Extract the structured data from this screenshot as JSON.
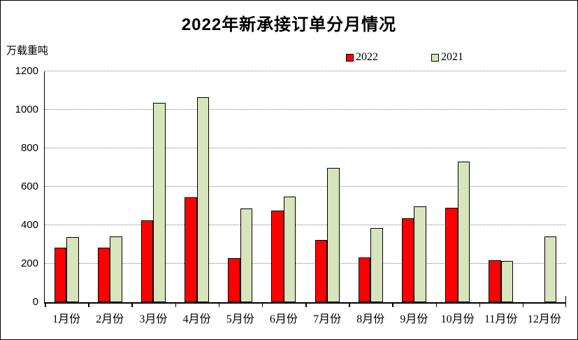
{
  "chart_data": {
    "type": "bar",
    "title": "2022年新承接订单分月情况",
    "unit_label": "万载重吨",
    "categories": [
      "1月份",
      "2月份",
      "3月份",
      "4月份",
      "5月份",
      "6月份",
      "7月份",
      "8月份",
      "9月份",
      "10月份",
      "11月份",
      "12月份"
    ],
    "series": [
      {
        "name": "2022",
        "color": "#ff0000",
        "values": [
          283,
          283,
          425,
          545,
          230,
          475,
          325,
          232,
          437,
          490,
          220,
          0
        ]
      },
      {
        "name": "2021",
        "color": "#d8e4bc",
        "values": [
          338,
          342,
          1035,
          1065,
          487,
          548,
          698,
          387,
          500,
          730,
          215,
          342
        ]
      }
    ],
    "ylim": [
      0,
      1200
    ],
    "y_tick_step": 200,
    "y_ticks": [
      0,
      200,
      400,
      600,
      800,
      1000,
      1200
    ],
    "grid": "horizontal-dotted",
    "legend_position": "top",
    "bar_outline_color": "#000000",
    "gridline_color": "#7f7f7f",
    "axis_color": "#000000",
    "background_color": "#ffffff"
  }
}
